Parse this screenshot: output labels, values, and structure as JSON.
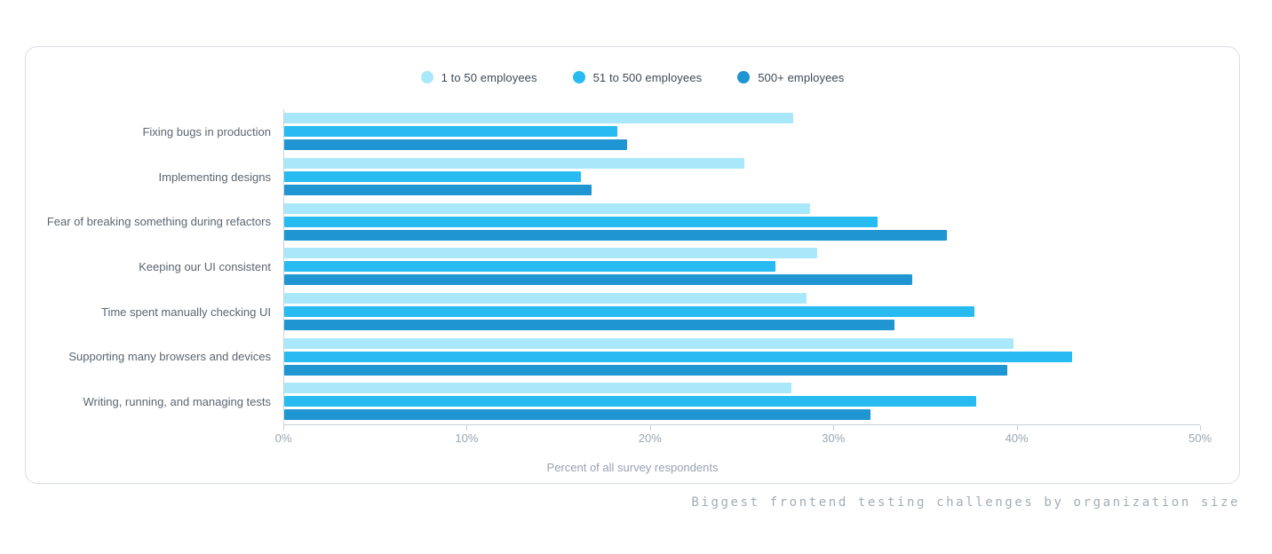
{
  "legend": {
    "items": [
      {
        "label": "1 to 50 employees",
        "color": "#a9e8fb"
      },
      {
        "label": "51 to 500 employees",
        "color": "#27bbf2"
      },
      {
        "label": "500+ employees",
        "color": "#1f95d2"
      }
    ]
  },
  "chart_data": {
    "type": "bar",
    "orientation": "horizontal",
    "title": "",
    "xlabel": "Percent of all survey respondents",
    "ylabel": "",
    "xlim": [
      0,
      50
    ],
    "xticks": [
      "0%",
      "10%",
      "20%",
      "30%",
      "40%",
      "50%"
    ],
    "grid": false,
    "legend_position": "top-center",
    "categories": [
      "Fixing bugs in production",
      "Implementing designs",
      "Fear of breaking something during refactors",
      "Keeping our UI consistent",
      "Time spent manually checking UI",
      "Supporting many browsers and devices",
      "Writing, running, and managing tests"
    ],
    "series": [
      {
        "name": "1 to 50 employees",
        "color": "#a9e8fb",
        "values": [
          27.8,
          25.1,
          28.7,
          29.1,
          28.5,
          39.8,
          27.7
        ]
      },
      {
        "name": "51 to 500 employees",
        "color": "#27bbf2",
        "values": [
          18.2,
          16.2,
          32.4,
          26.8,
          37.7,
          43.0,
          37.8
        ]
      },
      {
        "name": "500+ employees",
        "color": "#1f95d2",
        "values": [
          18.7,
          16.8,
          36.2,
          34.3,
          33.3,
          39.5,
          32.0
        ]
      }
    ]
  },
  "caption": "Biggest frontend testing challenges by organization size"
}
